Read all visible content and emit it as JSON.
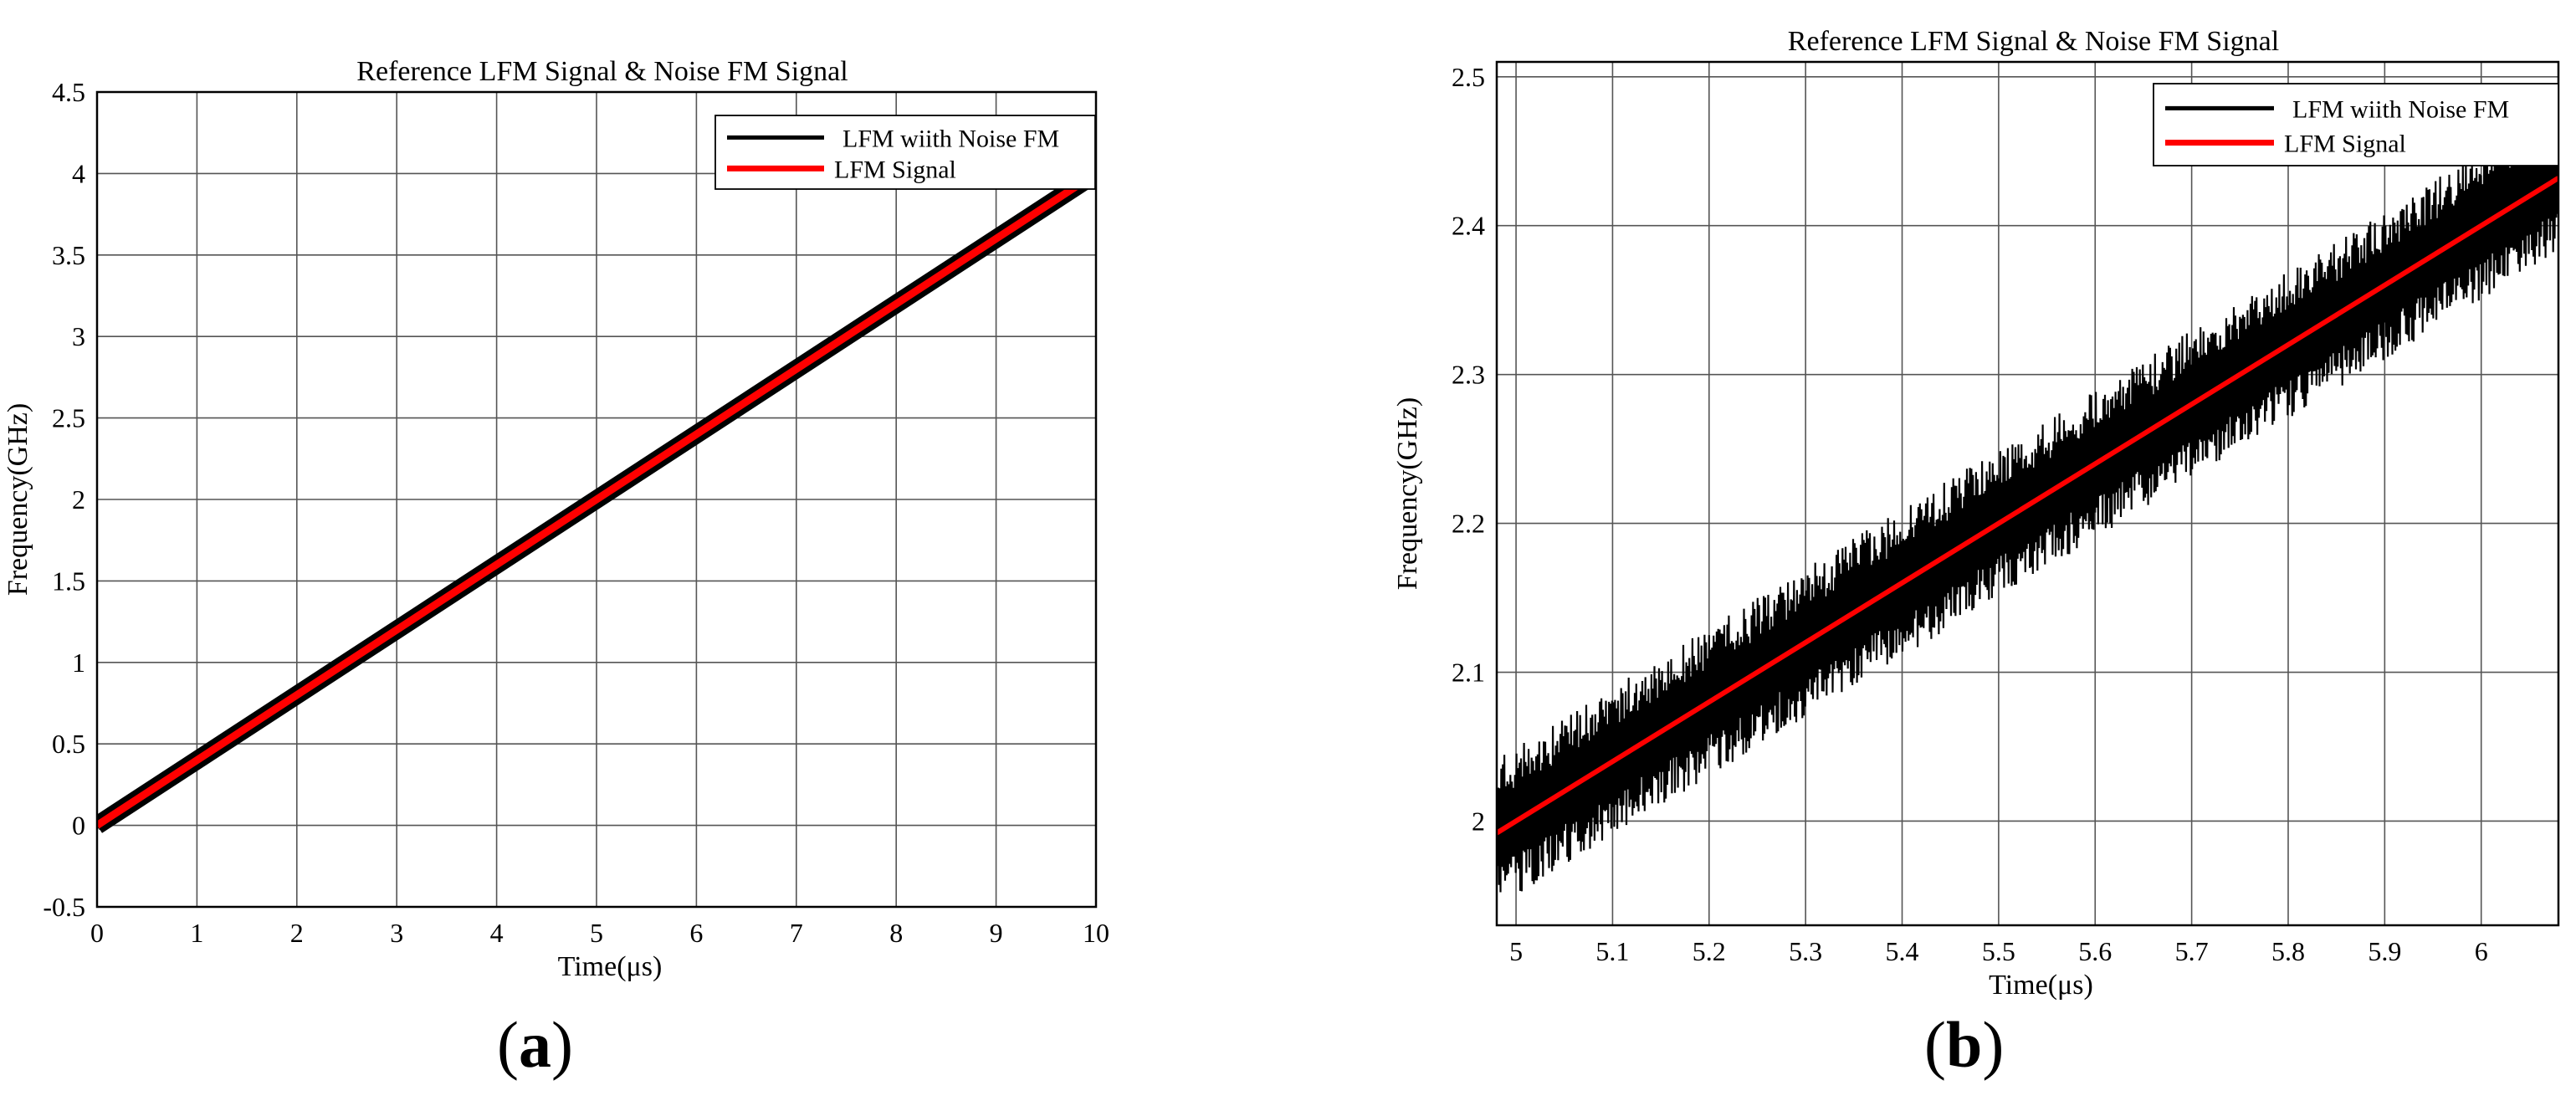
{
  "chart_data": [
    {
      "type": "line",
      "panel_label": "a",
      "title": "Reference LFM Signal & Noise FM Signal",
      "xlabel": "Time(μs)",
      "ylabel": "Frequency(GHz)",
      "xlim": [
        0,
        10
      ],
      "ylim": [
        -0.5,
        4.5
      ],
      "xticks": [
        "0",
        "1",
        "2",
        "3",
        "4",
        "5",
        "6",
        "7",
        "8",
        "9",
        "10"
      ],
      "yticks": [
        "-0.5",
        "0",
        "0.5",
        "1",
        "1.5",
        "2",
        "2.5",
        "3",
        "3.5",
        "4",
        "4.5"
      ],
      "grid": true,
      "legend_position": "top-right",
      "series": [
        {
          "name": "LFM wiith Noise FM",
          "color": "#000000",
          "x": [
            0,
            10
          ],
          "y": [
            0,
            4
          ],
          "noise_band": 0.05
        },
        {
          "name": "LFM Signal",
          "color": "#ff0000",
          "x": [
            0,
            10
          ],
          "y": [
            0,
            4
          ]
        }
      ]
    },
    {
      "type": "line",
      "panel_label": "b",
      "title": "Reference LFM Signal & Noise FM Signal",
      "xlabel": "Time(μs)",
      "ylabel": "Frequency(GHz)",
      "xlim": [
        4.98,
        6.08
      ],
      "ylim": [
        1.93,
        2.51
      ],
      "xticks": [
        "5",
        "5.1",
        "5.2",
        "5.3",
        "5.4",
        "5.5",
        "5.6",
        "5.7",
        "5.8",
        "5.9",
        "6"
      ],
      "yticks": [
        "2",
        "2.1",
        "2.2",
        "2.3",
        "2.4",
        "2.5"
      ],
      "grid": true,
      "legend_position": "top-right",
      "series": [
        {
          "name": "LFM wiith Noise FM",
          "color": "#000000",
          "x": [
            4.98,
            6.08
          ],
          "y": [
            1.992,
            2.432
          ],
          "noise_band": 0.05
        },
        {
          "name": "LFM Signal",
          "color": "#ff0000",
          "x": [
            4.98,
            6.08
          ],
          "y": [
            1.992,
            2.432
          ]
        }
      ]
    }
  ]
}
